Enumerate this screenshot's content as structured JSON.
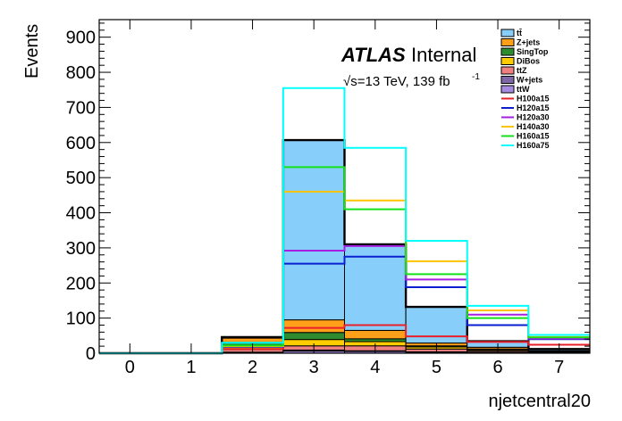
{
  "chart_data": {
    "type": "bar",
    "xlabel": "njetcentral20",
    "ylabel": "Events",
    "xlim": [
      -0.5,
      7.5
    ],
    "ylim": [
      0,
      950
    ],
    "x_ticks": [
      "0",
      "1",
      "2",
      "3",
      "4",
      "5",
      "6",
      "7"
    ],
    "y_ticks": [
      "0",
      "100",
      "200",
      "300",
      "400",
      "500",
      "600",
      "700",
      "800",
      "900"
    ],
    "y_tick_values": [
      0,
      100,
      200,
      300,
      400,
      500,
      600,
      700,
      800,
      900
    ],
    "bins": [
      0,
      1,
      2,
      3,
      4,
      5,
      6,
      7
    ],
    "atlas_label": "ATLAS",
    "atlas_status": "Internal",
    "lumi_label": "√s=13 TeV, 139 fb",
    "lumi_exponent": "-1",
    "legend_position": "top-right",
    "stacked_backgrounds": [
      {
        "name": "ttW",
        "color": "#a78be0",
        "values": [
          0,
          0,
          2,
          6,
          5,
          3,
          2,
          1
        ]
      },
      {
        "name": "W+jets",
        "color": "#7e68a8",
        "values": [
          0,
          0,
          1,
          3,
          2,
          1,
          1,
          0
        ]
      },
      {
        "name": "ttZ",
        "color": "#f08080",
        "values": [
          0,
          0,
          8,
          12,
          14,
          8,
          4,
          2
        ]
      },
      {
        "name": "DiBos",
        "color": "#ffcc00",
        "values": [
          0,
          0,
          12,
          18,
          12,
          6,
          3,
          1
        ]
      },
      {
        "name": "SingTop",
        "color": "#2e8b2e",
        "values": [
          0,
          0,
          8,
          20,
          8,
          3,
          2,
          1
        ]
      },
      {
        "name": "Z+jets",
        "color": "#ff9f1a",
        "values": [
          0,
          0,
          12,
          36,
          24,
          8,
          5,
          2
        ]
      },
      {
        "name": "tt̄",
        "legend": "tt̄",
        "color": "#87cefa",
        "values": [
          0,
          0,
          3,
          512,
          245,
          103,
          17,
          5
        ]
      }
    ],
    "background_total": [
      0,
      0,
      46,
      607,
      310,
      132,
      34,
      12
    ],
    "signals": [
      {
        "name": "H100a15",
        "color": "#e8202a",
        "values": [
          0,
          0,
          12,
          72,
          80,
          48,
          32,
          24
        ]
      },
      {
        "name": "H120a15",
        "color": "#0a1fcf",
        "values": [
          0,
          0,
          18,
          255,
          275,
          188,
          80,
          40
        ]
      },
      {
        "name": "H120a30",
        "color": "#a61fe0",
        "values": [
          0,
          0,
          20,
          292,
          305,
          210,
          110,
          42
        ]
      },
      {
        "name": "H140a30",
        "color": "#ffc400",
        "values": [
          0,
          0,
          20,
          460,
          435,
          262,
          122,
          46
        ]
      },
      {
        "name": "H160a15",
        "color": "#14e01a",
        "values": [
          0,
          0,
          22,
          530,
          410,
          225,
          100,
          45
        ]
      },
      {
        "name": "H160a75",
        "color": "#00ffff",
        "values": [
          0,
          0,
          30,
          755,
          585,
          320,
          135,
          52
        ]
      }
    ],
    "legend_entries": [
      "tt̄",
      "Z+jets",
      "SingTop",
      "DiBos",
      "ttZ",
      "W+jets",
      "ttW",
      "H100a15",
      "H120a15",
      "H120a30",
      "H140a30",
      "H160a15",
      "H160a75"
    ]
  }
}
